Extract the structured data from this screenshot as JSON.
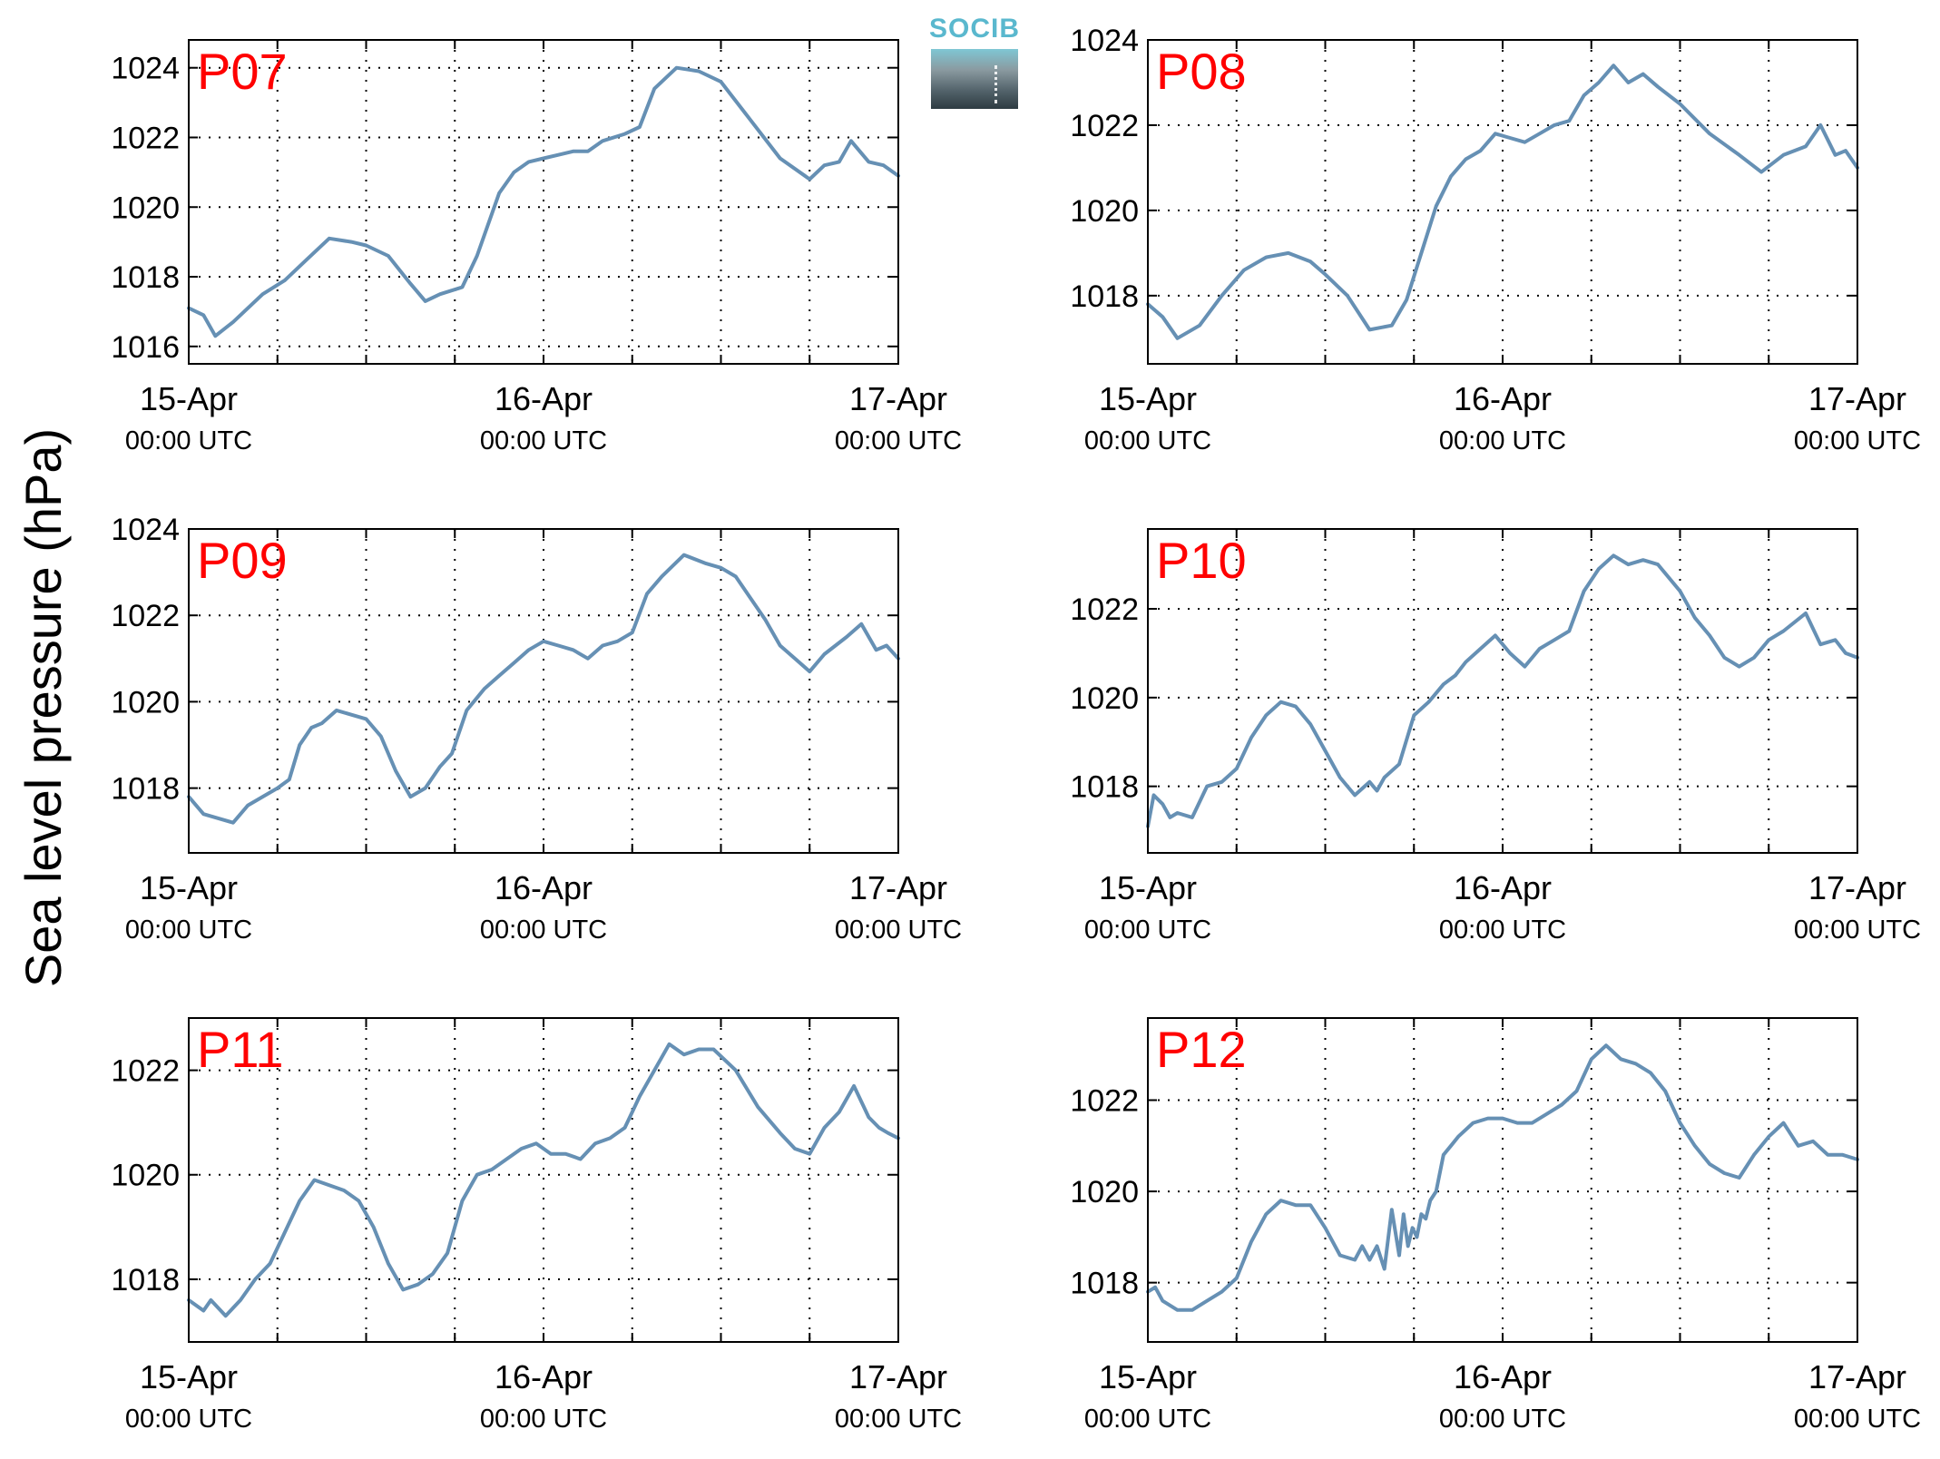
{
  "figure": {
    "ylabel": "Sea level pressure (hPa)",
    "logo_text": "SOCIB",
    "line_color": "#6690b4",
    "label_color": "#ff0000"
  },
  "chart_data": [
    {
      "type": "line",
      "title": "P07",
      "x_tick_labels": [
        [
          "15-Apr",
          "00:00 UTC"
        ],
        [
          "16-Apr",
          "00:00 UTC"
        ],
        [
          "17-Apr",
          "00:00 UTC"
        ]
      ],
      "xlim": [
        0,
        48
      ],
      "ylim": [
        1015.5,
        1024.8
      ],
      "yticks": [
        1016,
        1018,
        1020,
        1022,
        1024
      ],
      "grid": true,
      "x": [
        0,
        1,
        1.8,
        3,
        5,
        6.5,
        8,
        9.5,
        11,
        12,
        13.5,
        15,
        16,
        17,
        18.5,
        19.5,
        21,
        22,
        23,
        24,
        25,
        26,
        27,
        28,
        29.5,
        30.5,
        31.5,
        33,
        34.5,
        36,
        38,
        40,
        42,
        43,
        44,
        44.8,
        46,
        47,
        48
      ],
      "values": [
        1017.1,
        1016.9,
        1016.3,
        1016.7,
        1017.5,
        1017.9,
        1018.5,
        1019.1,
        1019.0,
        1018.9,
        1018.6,
        1017.8,
        1017.3,
        1017.5,
        1017.7,
        1018.6,
        1020.4,
        1021.0,
        1021.3,
        1021.4,
        1021.5,
        1021.6,
        1021.6,
        1021.9,
        1022.1,
        1022.3,
        1023.4,
        1024.0,
        1023.9,
        1023.6,
        1022.5,
        1021.4,
        1020.8,
        1021.2,
        1021.3,
        1021.9,
        1021.3,
        1021.2,
        1020.9
      ]
    },
    {
      "type": "line",
      "title": "P08",
      "x_tick_labels": [
        [
          "15-Apr",
          "00:00 UTC"
        ],
        [
          "16-Apr",
          "00:00 UTC"
        ],
        [
          "17-Apr",
          "00:00 UTC"
        ]
      ],
      "xlim": [
        0,
        48
      ],
      "ylim": [
        1016.4,
        1024.0
      ],
      "yticks": [
        1018,
        1020,
        1022,
        1024
      ],
      "grid": true,
      "x": [
        0,
        1,
        2,
        3.5,
        5,
        6.5,
        8,
        9.5,
        11,
        12,
        13.5,
        15,
        16.5,
        17.5,
        18.5,
        19.5,
        20.5,
        21.5,
        22.5,
        23.5,
        24.5,
        25.5,
        26.5,
        27.5,
        28.5,
        29.5,
        30.5,
        31.5,
        32.5,
        33.5,
        34.5,
        36,
        38,
        40,
        41.5,
        43,
        44.5,
        45.5,
        46.5,
        47.2,
        48
      ],
      "values": [
        1017.8,
        1017.5,
        1017.0,
        1017.3,
        1018.0,
        1018.6,
        1018.9,
        1019.0,
        1018.8,
        1018.5,
        1018.0,
        1017.2,
        1017.3,
        1017.9,
        1019.0,
        1020.1,
        1020.8,
        1021.2,
        1021.4,
        1021.8,
        1021.7,
        1021.6,
        1021.8,
        1022.0,
        1022.1,
        1022.7,
        1023.0,
        1023.4,
        1023.0,
        1023.2,
        1022.9,
        1022.5,
        1021.8,
        1021.3,
        1020.9,
        1021.3,
        1021.5,
        1022.0,
        1021.3,
        1021.4,
        1021.0
      ]
    },
    {
      "type": "line",
      "title": "P09",
      "x_tick_labels": [
        [
          "15-Apr",
          "00:00 UTC"
        ],
        [
          "16-Apr",
          "00:00 UTC"
        ],
        [
          "17-Apr",
          "00:00 UTC"
        ]
      ],
      "xlim": [
        0,
        48
      ],
      "ylim": [
        1016.5,
        1024.0
      ],
      "yticks": [
        1018,
        1020,
        1022,
        1024
      ],
      "grid": true,
      "x": [
        0,
        1,
        2,
        3,
        4,
        5,
        6,
        6.8,
        7.5,
        8.3,
        9,
        10,
        11,
        12,
        13,
        14,
        15,
        16,
        17,
        17.8,
        18.8,
        20,
        21,
        22,
        23,
        24,
        25,
        26,
        27,
        28,
        29,
        30,
        31,
        32,
        33.5,
        35,
        36,
        37,
        38,
        39,
        40,
        41,
        42,
        43,
        44.5,
        45.5,
        46.5,
        47.2,
        48
      ],
      "values": [
        1017.8,
        1017.4,
        1017.3,
        1017.2,
        1017.6,
        1017.8,
        1018.0,
        1018.2,
        1019.0,
        1019.4,
        1019.5,
        1019.8,
        1019.7,
        1019.6,
        1019.2,
        1018.4,
        1017.8,
        1018.0,
        1018.5,
        1018.8,
        1019.8,
        1020.3,
        1020.6,
        1020.9,
        1021.2,
        1021.4,
        1021.3,
        1021.2,
        1021.0,
        1021.3,
        1021.4,
        1021.6,
        1022.5,
        1022.9,
        1023.4,
        1023.2,
        1023.1,
        1022.9,
        1022.4,
        1021.9,
        1021.3,
        1021.0,
        1020.7,
        1021.1,
        1021.5,
        1021.8,
        1021.2,
        1021.3,
        1021.0
      ]
    },
    {
      "type": "line",
      "title": "P10",
      "x_tick_labels": [
        [
          "15-Apr",
          "00:00 UTC"
        ],
        [
          "16-Apr",
          "00:00 UTC"
        ],
        [
          "17-Apr",
          "00:00 UTC"
        ]
      ],
      "xlim": [
        0,
        48
      ],
      "ylim": [
        1016.5,
        1023.8
      ],
      "yticks": [
        1018,
        1020,
        1022
      ],
      "grid": true,
      "x": [
        0,
        0.4,
        1,
        1.5,
        2,
        3,
        4,
        5,
        6,
        7,
        8,
        9,
        10,
        11,
        12,
        13,
        14,
        15,
        15.5,
        16,
        17,
        18,
        19,
        20,
        20.8,
        21.5,
        22.5,
        23.5,
        24.5,
        25.5,
        26.5,
        27.5,
        28.5,
        29.5,
        30.5,
        31.5,
        32.5,
        33.5,
        34.5,
        36,
        37,
        38,
        39,
        40,
        41,
        42,
        43,
        44.5,
        45.5,
        46.5,
        47.2,
        48
      ],
      "values": [
        1017.1,
        1017.8,
        1017.6,
        1017.3,
        1017.4,
        1017.3,
        1018.0,
        1018.1,
        1018.4,
        1019.1,
        1019.6,
        1019.9,
        1019.8,
        1019.4,
        1018.8,
        1018.2,
        1017.8,
        1018.1,
        1017.9,
        1018.2,
        1018.5,
        1019.6,
        1019.9,
        1020.3,
        1020.5,
        1020.8,
        1021.1,
        1021.4,
        1021.0,
        1020.7,
        1021.1,
        1021.3,
        1021.5,
        1022.4,
        1022.9,
        1023.2,
        1023.0,
        1023.1,
        1023.0,
        1022.4,
        1021.8,
        1021.4,
        1020.9,
        1020.7,
        1020.9,
        1021.3,
        1021.5,
        1021.9,
        1021.2,
        1021.3,
        1021.0,
        1020.9
      ]
    },
    {
      "type": "line",
      "title": "P11",
      "x_tick_labels": [
        [
          "15-Apr",
          "00:00 UTC"
        ],
        [
          "16-Apr",
          "00:00 UTC"
        ],
        [
          "17-Apr",
          "00:00 UTC"
        ]
      ],
      "xlim": [
        0,
        48
      ],
      "ylim": [
        1016.8,
        1023.0
      ],
      "yticks": [
        1018,
        1020,
        1022
      ],
      "grid": true,
      "x": [
        0,
        1,
        1.5,
        2.5,
        3.5,
        4.5,
        5.5,
        6.5,
        7.5,
        8.5,
        9.5,
        10.5,
        11.5,
        12.5,
        13.5,
        14.5,
        15.5,
        16.5,
        17.5,
        18.5,
        19.5,
        20.5,
        21.5,
        22.5,
        23.5,
        24.5,
        25.5,
        26.5,
        27.5,
        28.5,
        29.5,
        30.5,
        31.5,
        32.5,
        33.5,
        34.5,
        35.5,
        37,
        38.5,
        40,
        41,
        42,
        43,
        44,
        45,
        46,
        46.7,
        47.3,
        48
      ],
      "values": [
        1017.6,
        1017.4,
        1017.6,
        1017.3,
        1017.6,
        1018.0,
        1018.3,
        1018.9,
        1019.5,
        1019.9,
        1019.8,
        1019.7,
        1019.5,
        1019.0,
        1018.3,
        1017.8,
        1017.9,
        1018.1,
        1018.5,
        1019.5,
        1020.0,
        1020.1,
        1020.3,
        1020.5,
        1020.6,
        1020.4,
        1020.4,
        1020.3,
        1020.6,
        1020.7,
        1020.9,
        1021.5,
        1022.0,
        1022.5,
        1022.3,
        1022.4,
        1022.4,
        1022.0,
        1021.3,
        1020.8,
        1020.5,
        1020.4,
        1020.9,
        1021.2,
        1021.7,
        1021.1,
        1020.9,
        1020.8,
        1020.7
      ]
    },
    {
      "type": "line",
      "title": "P12",
      "x_tick_labels": [
        [
          "15-Apr",
          "00:00 UTC"
        ],
        [
          "16-Apr",
          "00:00 UTC"
        ],
        [
          "17-Apr",
          "00:00 UTC"
        ]
      ],
      "xlim": [
        0,
        48
      ],
      "ylim": [
        1016.7,
        1023.8
      ],
      "yticks": [
        1018,
        1020,
        1022
      ],
      "grid": true,
      "x": [
        0,
        0.5,
        1,
        2,
        3,
        4,
        5,
        6,
        7,
        8,
        9,
        10,
        11,
        12,
        13,
        14,
        14.5,
        15,
        15.5,
        16,
        16.5,
        17,
        17.3,
        17.6,
        17.9,
        18.2,
        18.5,
        18.8,
        19.1,
        19.5,
        20,
        20.5,
        21,
        22,
        23,
        24,
        25,
        26,
        27,
        28,
        29,
        30,
        31,
        32,
        33,
        34,
        35,
        36,
        37,
        38,
        39,
        40,
        41,
        42,
        43,
        44,
        45,
        46,
        47,
        48
      ],
      "values": [
        1017.8,
        1017.9,
        1017.6,
        1017.4,
        1017.4,
        1017.6,
        1017.8,
        1018.1,
        1018.9,
        1019.5,
        1019.8,
        1019.7,
        1019.7,
        1019.2,
        1018.6,
        1018.5,
        1018.8,
        1018.5,
        1018.8,
        1018.3,
        1019.6,
        1018.6,
        1019.5,
        1018.8,
        1019.2,
        1019.0,
        1019.5,
        1019.4,
        1019.8,
        1020.0,
        1020.8,
        1021.0,
        1021.2,
        1021.5,
        1021.6,
        1021.6,
        1021.5,
        1021.5,
        1021.7,
        1021.9,
        1022.2,
        1022.9,
        1023.2,
        1022.9,
        1022.8,
        1022.6,
        1022.2,
        1021.5,
        1021.0,
        1020.6,
        1020.4,
        1020.3,
        1020.8,
        1021.2,
        1021.5,
        1021.0,
        1021.1,
        1020.8,
        1020.8,
        1020.7
      ]
    }
  ]
}
